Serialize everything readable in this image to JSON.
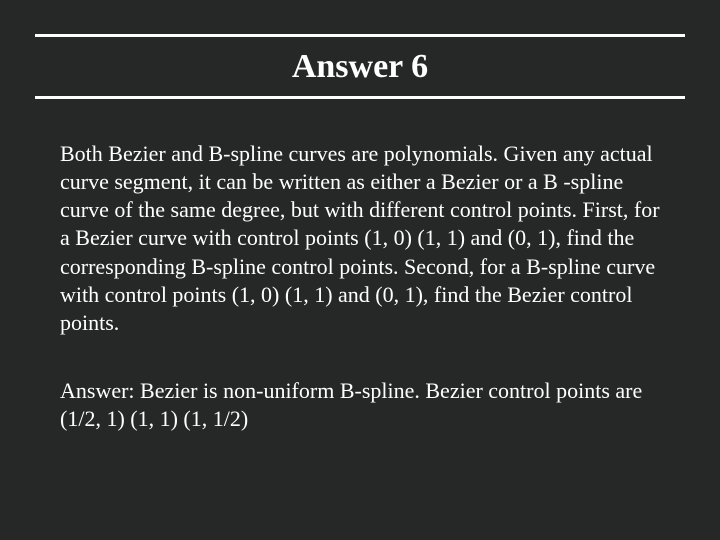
{
  "colors": {
    "background": "#262727",
    "text": "#ffffff",
    "rule": "#ffffff"
  },
  "typography": {
    "title_fontsize": 34,
    "title_weight": "bold",
    "body_fontsize": 22,
    "font_family": "Times New Roman"
  },
  "title": "Answer 6",
  "paragraphs": {
    "p1": " Both Bezier and B-spline curves are polynomials.  Given any actual curve segment, it can be written as either a Bezier or a B -spline curve of the same degree, but with different control points.  First, for a Bezier curve with control points (1, 0) (1, 1) and (0, 1), find the corresponding B-spline control points.  Second, for a B-spline curve with control points (1, 0) (1, 1) and (0, 1), find the Bezier control points.",
    "p2": " Answer: Bezier is non-uniform B-spline.  Bezier control points are (1/2, 1) (1, 1) (1, 1/2)"
  }
}
